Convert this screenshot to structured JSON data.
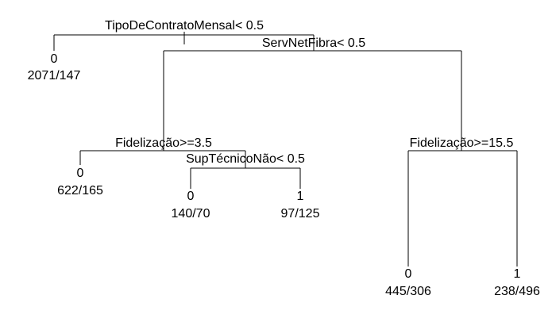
{
  "tree": {
    "splits": {
      "root": "TipoDeContratoMensal< 0.5",
      "net": "ServNetFibra< 0.5",
      "fid_left": "Fidelização>=3.5",
      "sup": "SupTécnicoNão< 0.5",
      "fid_right": "Fidelização>=15.5"
    },
    "leaves": {
      "l1": {
        "class": "0",
        "counts": "2071/147"
      },
      "l2": {
        "class": "0",
        "counts": "622/165"
      },
      "l3": {
        "class": "0",
        "counts": "140/70"
      },
      "l4": {
        "class": "1",
        "counts": "97/125"
      },
      "l5": {
        "class": "0",
        "counts": "445/306"
      },
      "l6": {
        "class": "1",
        "counts": "238/496"
      }
    }
  }
}
